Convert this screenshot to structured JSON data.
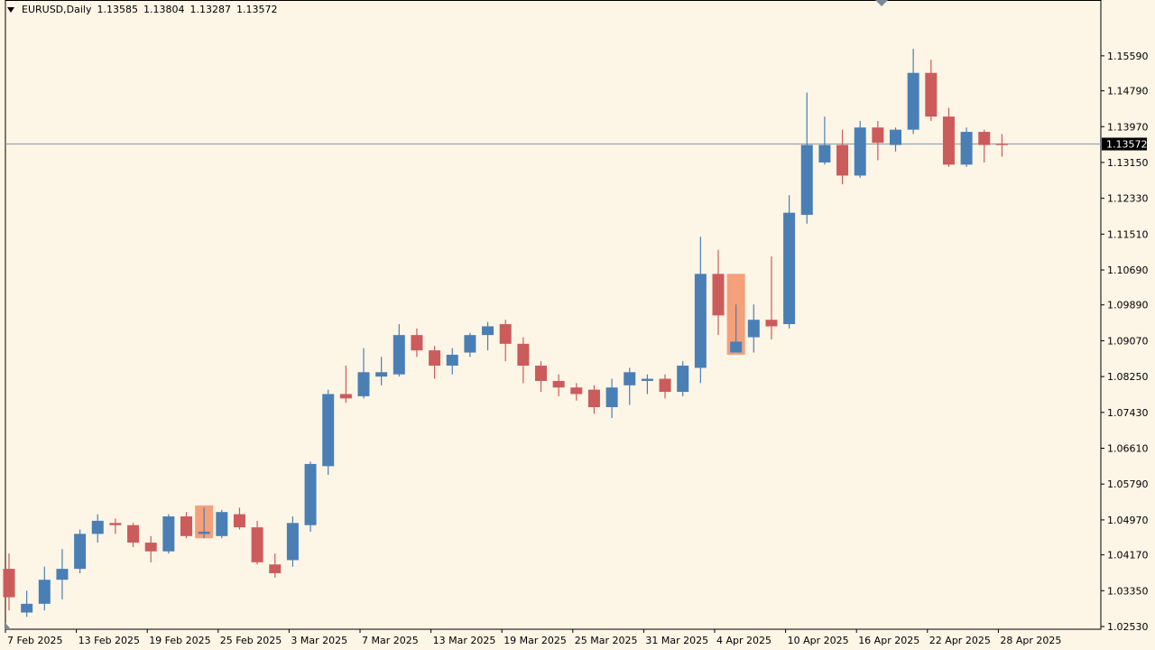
{
  "header": {
    "symbol": "EURUSD,Daily",
    "open": "1.13585",
    "high": "1.13804",
    "low": "1.13287",
    "close": "1.13572"
  },
  "colors": {
    "background": "#fdf5e6",
    "bull": "#4a7fb5",
    "bear": "#cc5b5b",
    "highlight": "#f4a07a",
    "price_line": "#9aa5ad",
    "axis": "#000000"
  },
  "chart_data": {
    "type": "candlestick",
    "title": "EURUSD,Daily",
    "current_price": "1.13572",
    "ylim": [
      1.0253,
      1.16
    ],
    "y_ticks": [
      "1.02530",
      "1.03350",
      "1.04170",
      "1.04970",
      "1.05790",
      "1.06610",
      "1.07430",
      "1.08250",
      "1.09070",
      "1.09890",
      "1.10690",
      "1.11510",
      "1.12330",
      "1.13150",
      "1.13970",
      "1.14790",
      "1.15590"
    ],
    "x_ticks": [
      {
        "label": "7 Feb 2025",
        "index": 0
      },
      {
        "label": "13 Feb 2025",
        "index": 4
      },
      {
        "label": "19 Feb 2025",
        "index": 8
      },
      {
        "label": "25 Feb 2025",
        "index": 12
      },
      {
        "label": "3 Mar 2025",
        "index": 16
      },
      {
        "label": "7 Mar 2025",
        "index": 20
      },
      {
        "label": "13 Mar 2025",
        "index": 24
      },
      {
        "label": "19 Mar 2025",
        "index": 28
      },
      {
        "label": "25 Mar 2025",
        "index": 32
      },
      {
        "label": "31 Mar 2025",
        "index": 36
      },
      {
        "label": "4 Apr 2025",
        "index": 40
      },
      {
        "label": "10 Apr 2025",
        "index": 44
      },
      {
        "label": "16 Apr 2025",
        "index": 48
      },
      {
        "label": "22 Apr 2025",
        "index": 52
      },
      {
        "label": "28 Apr 2025",
        "index": 56
      }
    ],
    "candles": [
      {
        "o": 1.0385,
        "h": 1.042,
        "l": 1.029,
        "c": 1.032
      },
      {
        "o": 1.0285,
        "h": 1.0335,
        "l": 1.0275,
        "c": 1.0305
      },
      {
        "o": 1.0305,
        "h": 1.039,
        "l": 1.029,
        "c": 1.036
      },
      {
        "o": 1.036,
        "h": 1.043,
        "l": 1.0315,
        "c": 1.0385
      },
      {
        "o": 1.0385,
        "h": 1.0475,
        "l": 1.0375,
        "c": 1.0465
      },
      {
        "o": 1.0465,
        "h": 1.051,
        "l": 1.0445,
        "c": 1.0495
      },
      {
        "o": 1.049,
        "h": 1.05,
        "l": 1.0465,
        "c": 1.0485
      },
      {
        "o": 1.0485,
        "h": 1.049,
        "l": 1.0435,
        "c": 1.0445
      },
      {
        "o": 1.0445,
        "h": 1.046,
        "l": 1.04,
        "c": 1.0425
      },
      {
        "o": 1.0425,
        "h": 1.051,
        "l": 1.042,
        "c": 1.0505
      },
      {
        "o": 1.0505,
        "h": 1.0515,
        "l": 1.0455,
        "c": 1.046
      },
      {
        "o": 1.0465,
        "h": 1.0525,
        "l": 1.0455,
        "c": 1.047,
        "hl": [
          1.0455,
          1.053
        ]
      },
      {
        "o": 1.046,
        "h": 1.052,
        "l": 1.0455,
        "c": 1.0515
      },
      {
        "o": 1.051,
        "h": 1.0525,
        "l": 1.0475,
        "c": 1.048
      },
      {
        "o": 1.048,
        "h": 1.0495,
        "l": 1.0395,
        "c": 1.04
      },
      {
        "o": 1.0395,
        "h": 1.042,
        "l": 1.0365,
        "c": 1.0375
      },
      {
        "o": 1.0405,
        "h": 1.0505,
        "l": 1.039,
        "c": 1.049
      },
      {
        "o": 1.0485,
        "h": 1.063,
        "l": 1.047,
        "c": 1.0625
      },
      {
        "o": 1.062,
        "h": 1.0795,
        "l": 1.06,
        "c": 1.0785
      },
      {
        "o": 1.0785,
        "h": 1.085,
        "l": 1.0765,
        "c": 1.0775
      },
      {
        "o": 1.078,
        "h": 1.089,
        "l": 1.0775,
        "c": 1.0835
      },
      {
        "o": 1.0825,
        "h": 1.087,
        "l": 1.0805,
        "c": 1.0835
      },
      {
        "o": 1.083,
        "h": 1.0945,
        "l": 1.0825,
        "c": 1.092
      },
      {
        "o": 1.092,
        "h": 1.0935,
        "l": 1.087,
        "c": 1.0885
      },
      {
        "o": 1.0885,
        "h": 1.0895,
        "l": 1.082,
        "c": 1.085
      },
      {
        "o": 1.085,
        "h": 1.089,
        "l": 1.083,
        "c": 1.0875
      },
      {
        "o": 1.088,
        "h": 1.0925,
        "l": 1.087,
        "c": 1.092
      },
      {
        "o": 1.092,
        "h": 1.095,
        "l": 1.0885,
        "c": 1.094
      },
      {
        "o": 1.0945,
        "h": 1.0955,
        "l": 1.086,
        "c": 1.09
      },
      {
        "o": 1.09,
        "h": 1.0915,
        "l": 1.081,
        "c": 1.085
      },
      {
        "o": 1.085,
        "h": 1.086,
        "l": 1.079,
        "c": 1.0815
      },
      {
        "o": 1.0815,
        "h": 1.083,
        "l": 1.078,
        "c": 1.08
      },
      {
        "o": 1.08,
        "h": 1.081,
        "l": 1.077,
        "c": 1.0785
      },
      {
        "o": 1.0795,
        "h": 1.0805,
        "l": 1.074,
        "c": 1.0755
      },
      {
        "o": 1.0755,
        "h": 1.082,
        "l": 1.073,
        "c": 1.08
      },
      {
        "o": 1.0805,
        "h": 1.0845,
        "l": 1.076,
        "c": 1.0835
      },
      {
        "o": 1.0815,
        "h": 1.083,
        "l": 1.0785,
        "c": 1.082
      },
      {
        "o": 1.082,
        "h": 1.083,
        "l": 1.0775,
        "c": 1.079
      },
      {
        "o": 1.079,
        "h": 1.086,
        "l": 1.078,
        "c": 1.085
      },
      {
        "o": 1.0845,
        "h": 1.1145,
        "l": 1.081,
        "c": 1.106
      },
      {
        "o": 1.106,
        "h": 1.1115,
        "l": 1.092,
        "c": 1.0965
      },
      {
        "o": 1.088,
        "h": 1.099,
        "l": 1.088,
        "c": 1.0905,
        "hl": [
          1.0875,
          1.106
        ]
      },
      {
        "o": 1.0915,
        "h": 1.099,
        "l": 1.088,
        "c": 1.0955
      },
      {
        "o": 1.0955,
        "h": 1.11,
        "l": 1.091,
        "c": 1.094
      },
      {
        "o": 1.0945,
        "h": 1.124,
        "l": 1.0935,
        "c": 1.12
      },
      {
        "o": 1.1195,
        "h": 1.1475,
        "l": 1.1175,
        "c": 1.1355
      },
      {
        "o": 1.1315,
        "h": 1.142,
        "l": 1.131,
        "c": 1.1355
      },
      {
        "o": 1.1355,
        "h": 1.139,
        "l": 1.1265,
        "c": 1.1285
      },
      {
        "o": 1.1285,
        "h": 1.141,
        "l": 1.128,
        "c": 1.1395
      },
      {
        "o": 1.1395,
        "h": 1.141,
        "l": 1.132,
        "c": 1.136
      },
      {
        "o": 1.1355,
        "h": 1.1395,
        "l": 1.134,
        "c": 1.139
      },
      {
        "o": 1.139,
        "h": 1.1575,
        "l": 1.138,
        "c": 1.152
      },
      {
        "o": 1.152,
        "h": 1.155,
        "l": 1.141,
        "c": 1.142
      },
      {
        "o": 1.142,
        "h": 1.144,
        "l": 1.1305,
        "c": 1.131
      },
      {
        "o": 1.131,
        "h": 1.1395,
        "l": 1.1305,
        "c": 1.1385
      },
      {
        "o": 1.1385,
        "h": 1.139,
        "l": 1.1315,
        "c": 1.1355
      },
      {
        "o": 1.1358,
        "h": 1.138,
        "l": 1.1328,
        "c": 1.1357
      }
    ]
  }
}
